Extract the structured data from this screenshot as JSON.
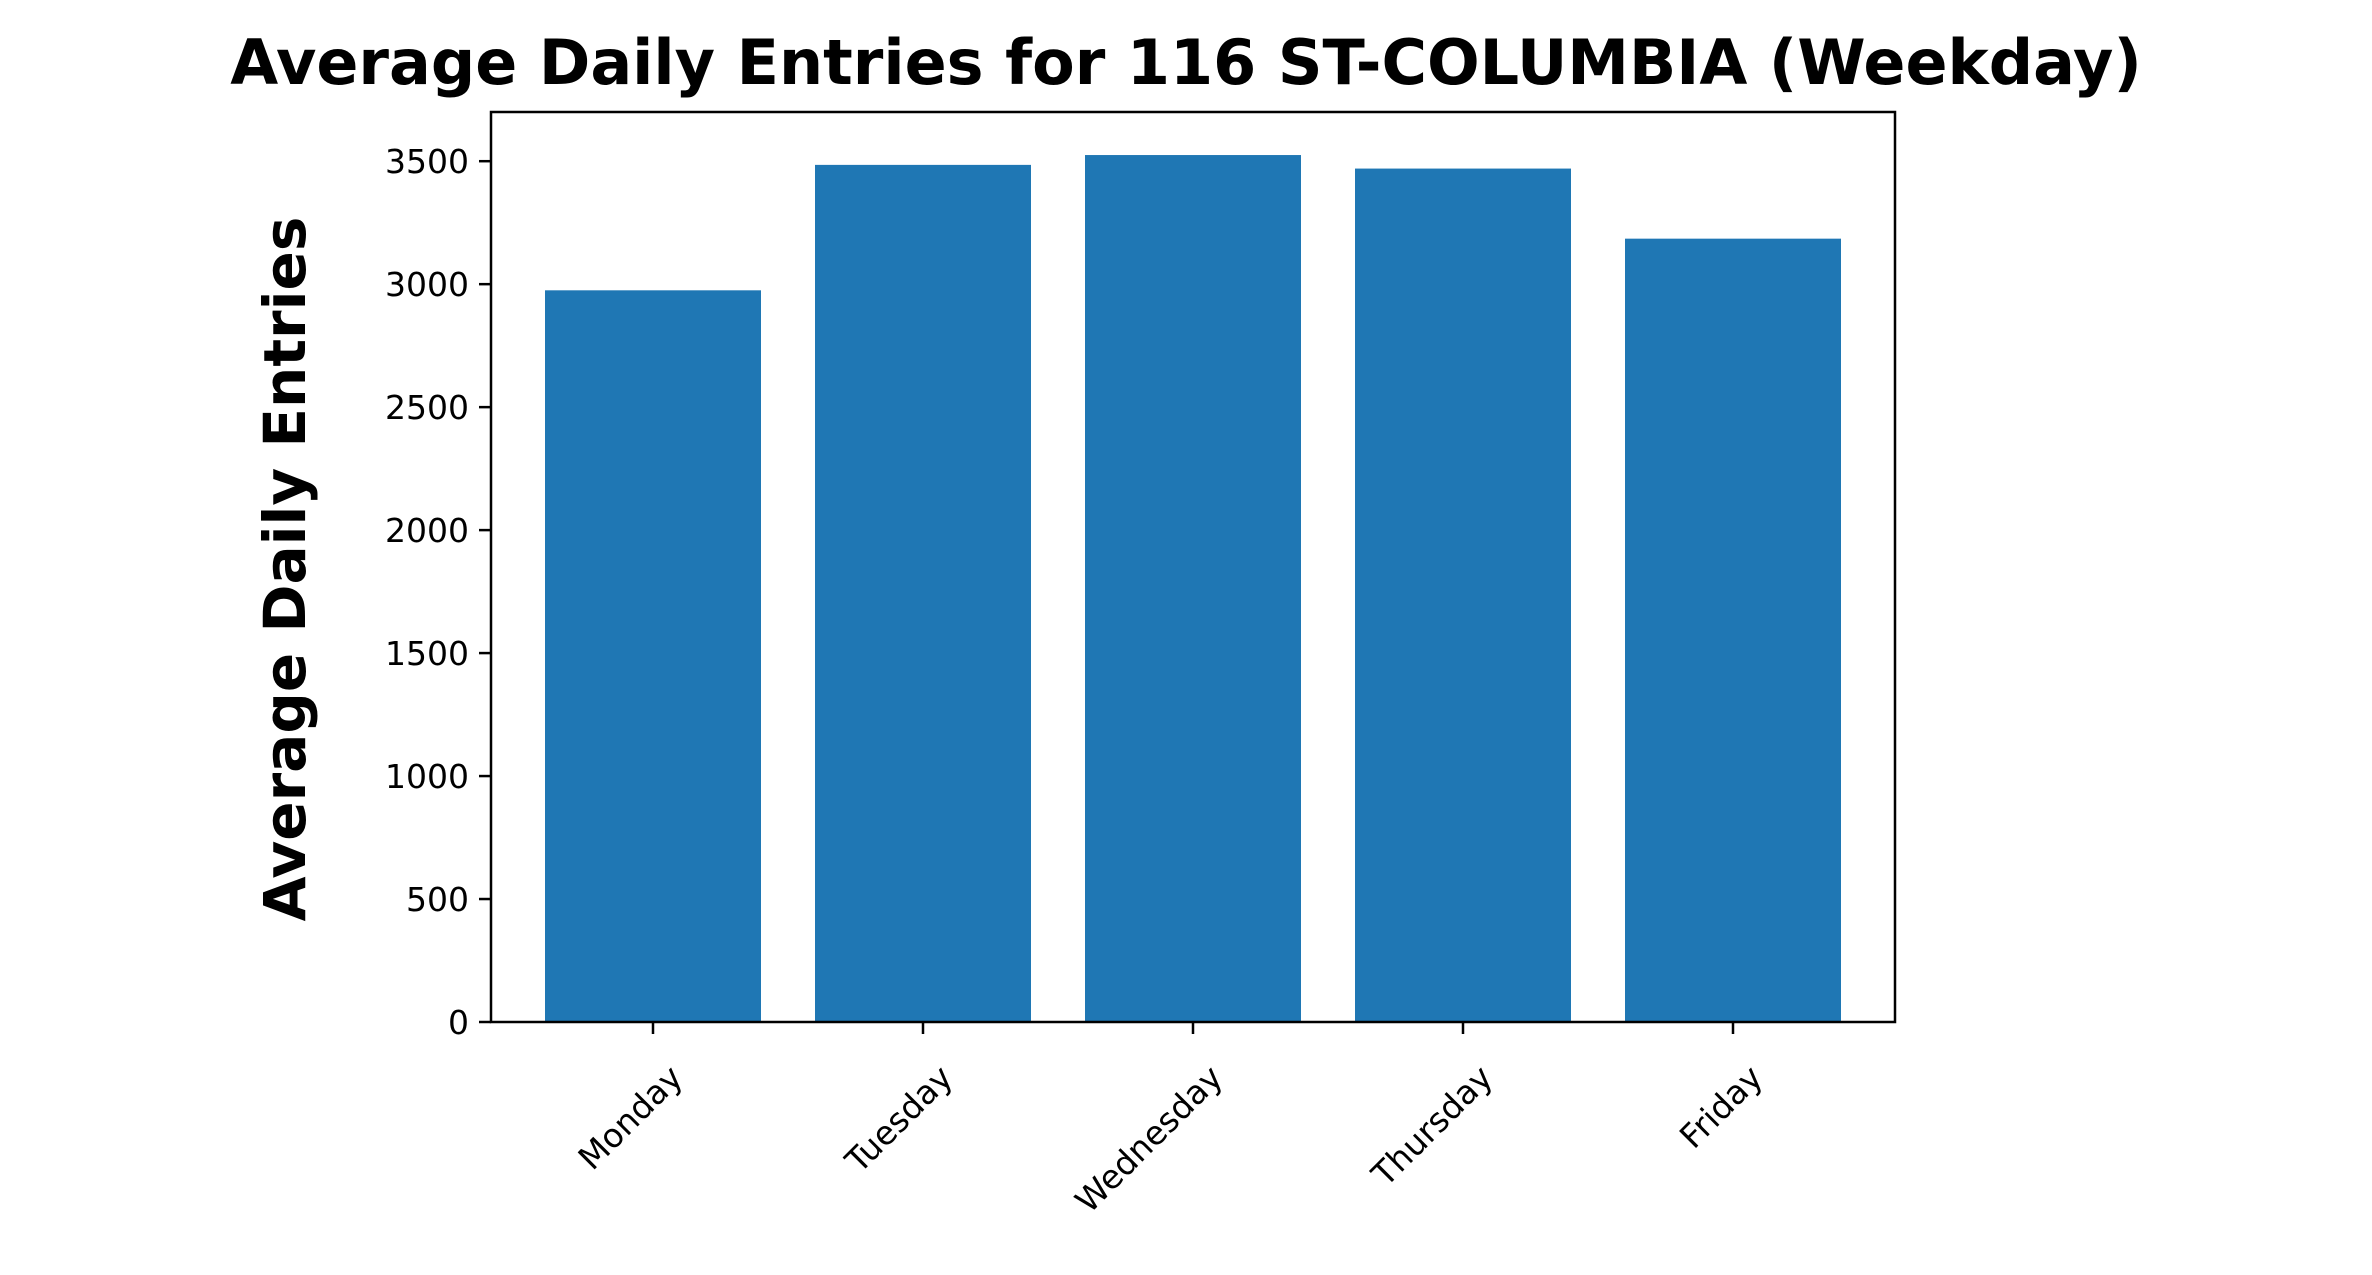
{
  "chart_data": {
    "type": "bar",
    "title": "Average Daily Entries for 116 ST-COLUMBIA (Weekday)",
    "xlabel": "",
    "ylabel": "Average Daily Entries",
    "categories": [
      "Monday",
      "Tuesday",
      "Wednesday",
      "Thursday",
      "Friday"
    ],
    "values": [
      2975,
      3485,
      3525,
      3470,
      3185
    ],
    "ylim": [
      0,
      3700
    ],
    "yticks": [
      0,
      500,
      1000,
      1500,
      2000,
      2500,
      3000,
      3500
    ],
    "ytick_labels": [
      "0",
      "500",
      "1000",
      "1500",
      "2000",
      "2500",
      "3000",
      "3500"
    ],
    "grid": false,
    "legend": "none",
    "bar_color": "#1f77b4"
  }
}
